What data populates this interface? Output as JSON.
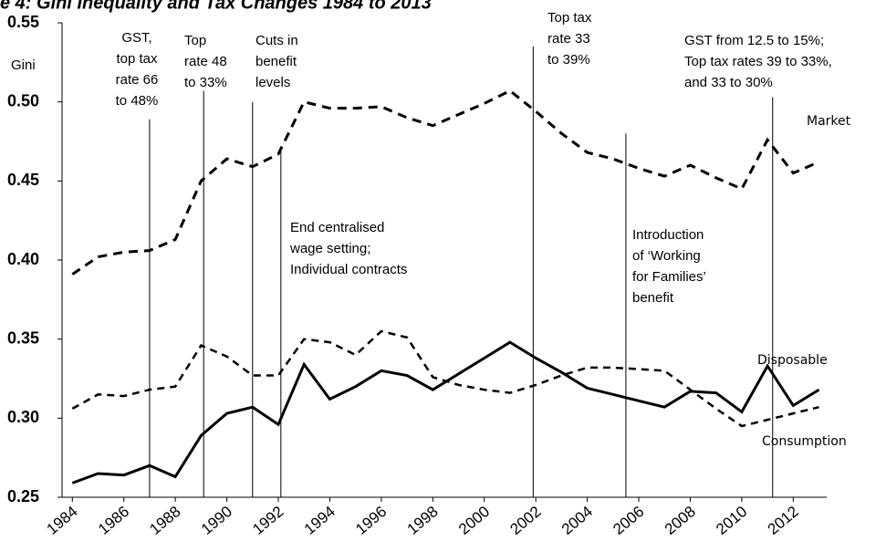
{
  "chart_data": {
    "type": "line",
    "title": "e 4: Gini Inequality and Tax Changes 1984 to 2013",
    "y_label": "Gini",
    "x": [
      1984,
      1985,
      1986,
      1987,
      1988,
      1989,
      1990,
      1991,
      1992,
      1993,
      1994,
      1995,
      1996,
      1997,
      1998,
      1999,
      2000,
      2001,
      2002,
      2003,
      2004,
      2005,
      2006,
      2007,
      2008,
      2009,
      2010,
      2011,
      2012,
      2013
    ],
    "series": [
      {
        "name": "Market",
        "color": "#000000",
        "style": "dashed-bold",
        "values": [
          0.391,
          0.402,
          0.405,
          0.406,
          0.413,
          0.45,
          0.464,
          0.459,
          0.467,
          0.5,
          0.496,
          0.496,
          0.497,
          0.49,
          0.485,
          0.492,
          0.499,
          0.507,
          0.494,
          0.48,
          0.468,
          0.464,
          0.458,
          0.453,
          0.46,
          0.452,
          0.445,
          0.476,
          0.455,
          0.462
        ]
      },
      {
        "name": "Disposable",
        "color": "#000000",
        "style": "solid",
        "values": [
          0.259,
          0.265,
          0.264,
          0.27,
          0.263,
          0.289,
          0.303,
          0.307,
          0.296,
          0.334,
          0.312,
          0.32,
          0.33,
          0.327,
          0.318,
          0.328,
          0.338,
          0.348,
          0.338,
          0.329,
          0.319,
          0.315,
          0.311,
          0.307,
          0.317,
          0.316,
          0.304,
          0.333,
          0.308,
          0.318
        ]
      },
      {
        "name": "Consumption",
        "color": "#000000",
        "style": "dashed",
        "values": [
          0.306,
          0.315,
          0.314,
          0.318,
          0.32,
          0.346,
          0.339,
          0.327,
          0.327,
          0.35,
          0.348,
          0.34,
          0.355,
          0.351,
          0.326,
          0.321,
          0.318,
          0.316,
          0.321,
          0.327,
          0.332,
          0.332,
          0.331,
          0.33,
          0.318,
          0.306,
          0.295,
          0.299,
          0.303,
          0.307
        ]
      }
    ],
    "xlim": [
      1983.6,
      2013.3
    ],
    "xticks": [
      1984,
      1986,
      1988,
      1990,
      1992,
      1994,
      1996,
      1998,
      2000,
      2002,
      2004,
      2006,
      2008,
      2010,
      2012
    ],
    "ylim": [
      0.25,
      0.55
    ],
    "yticks": [
      0.25,
      {
        "value": 0.3,
        "label": "0.30"
      },
      0.35,
      {
        "value": 0.4,
        "label": "0.40"
      },
      0.45,
      {
        "value": 0.5,
        "label": "0.50"
      },
      0.55
    ],
    "annotations": [
      {
        "x": 1987.0,
        "top": 0.489,
        "lines": [
          "GST,",
          "top tax",
          "rate 66",
          "to 48%"
        ]
      },
      {
        "x": 1989.1,
        "top": 0.507,
        "lines": [
          "Top",
          "rate 48",
          "to 33%"
        ]
      },
      {
        "x": 1991.0,
        "top": 0.5,
        "lines": [
          "Cuts in",
          "benefit",
          "levels"
        ]
      },
      {
        "x": 1992.1,
        "top": 0.472,
        "lines": [
          "End centralised",
          "wage setting;",
          "Individual contracts"
        ]
      },
      {
        "x": 2001.9,
        "top": 0.535,
        "lines": [
          "Top tax",
          "rate 33",
          "to 39%"
        ]
      },
      {
        "x": 2005.5,
        "top": 0.48,
        "lines": [
          "Introduction",
          "of ‘Working",
          "for Families’",
          "benefit"
        ]
      },
      {
        "x": 2011.2,
        "top": 0.503,
        "lines": [
          "GST  from 12.5 to 15%;",
          "Top tax rates  39 to 33%,",
          "and 33 to 30%"
        ]
      }
    ]
  }
}
